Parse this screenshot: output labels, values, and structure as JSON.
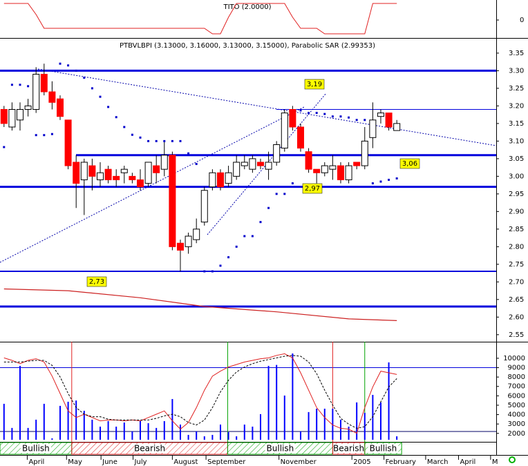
{
  "chart_data": [
    {
      "type": "line",
      "title": "TITO (2.0000)",
      "ylim": [
        -0.65,
        0.675
      ],
      "yticks": [
        0
      ],
      "series": [
        {
          "color": "#e02020",
          "values": [
            0.6,
            0.6,
            0.6,
            0.6,
            0.2,
            -0.3,
            -0.3,
            -0.3,
            -0.3,
            -0.3,
            -0.3,
            -0.3,
            -0.3,
            -0.3,
            -0.3,
            -0.3,
            -0.3,
            -0.3,
            -0.3,
            -0.3,
            -0.3,
            -0.3,
            -0.3,
            -0.3,
            -0.3,
            -0.3,
            -0.5,
            -0.5,
            0.1,
            0.6,
            0.6,
            0.6,
            0.6,
            0.6,
            0.6,
            0.6,
            0.1,
            -0.3,
            -0.3,
            -0.3,
            -0.5,
            -0.5,
            -0.5,
            -0.5,
            -0.5,
            -0.5,
            0.6,
            0.6,
            0.6,
            0.6
          ]
        }
      ]
    },
    {
      "type": "candlestick",
      "title": "PTBVLBPI (3.13000, 3.16000, 3.13000, 3.15000), Parabolic SAR (2.99353)",
      "up_color": "#ffffff",
      "down_color": "#ff0000",
      "open": [
        3.19,
        3.14,
        3.16,
        3.19,
        3.19,
        3.29,
        3.24,
        3.22,
        3.16,
        3.04,
        2.99,
        3.03,
        2.99,
        3.02,
        3.0,
        3.01,
        3.0,
        2.99,
        2.98,
        3.03,
        3.02,
        3.06,
        2.81,
        2.8,
        2.82,
        2.87,
        2.97,
        3.01,
        2.98,
        3.0,
        3.03,
        3.02,
        3.04,
        3.02,
        3.04,
        3.08,
        3.19,
        3.14,
        3.07,
        3.02,
        3.01,
        3.02,
        3.03,
        2.99,
        3.04,
        3.03,
        3.11,
        3.17,
        3.18,
        3.13
      ],
      "high": [
        3.2,
        3.21,
        3.21,
        3.22,
        3.31,
        3.32,
        3.27,
        3.23,
        3.16,
        3.06,
        3.05,
        3.05,
        3.04,
        3.03,
        3.02,
        3.03,
        3.01,
        3.02,
        3.04,
        3.06,
        3.1,
        3.07,
        2.82,
        2.84,
        2.88,
        2.97,
        3.02,
        3.02,
        3.03,
        3.06,
        3.06,
        3.06,
        3.05,
        3.07,
        3.1,
        3.19,
        3.2,
        3.15,
        3.08,
        3.02,
        3.04,
        3.06,
        3.04,
        3.04,
        3.04,
        3.14,
        3.21,
        3.19,
        3.18,
        3.16
      ],
      "low": [
        3.14,
        3.13,
        3.13,
        3.17,
        3.18,
        3.23,
        3.19,
        3.16,
        3.02,
        2.91,
        2.89,
        2.96,
        2.97,
        2.98,
        2.97,
        2.98,
        2.98,
        2.96,
        2.97,
        2.98,
        3.0,
        2.79,
        2.73,
        2.78,
        2.81,
        2.86,
        2.96,
        2.96,
        2.97,
        2.99,
        3.02,
        3.01,
        3.02,
        2.99,
        3.03,
        3.07,
        3.13,
        3.07,
        3.01,
        2.98,
        3.0,
        2.99,
        2.98,
        2.98,
        3.02,
        3.02,
        3.08,
        3.15,
        3.13,
        3.13
      ],
      "close": [
        3.15,
        3.19,
        3.19,
        3.2,
        3.29,
        3.24,
        3.21,
        3.17,
        3.03,
        2.98,
        3.04,
        3.0,
        3.01,
        2.99,
        2.99,
        3.02,
        2.99,
        2.97,
        3.04,
        3.01,
        3.06,
        2.8,
        2.79,
        2.83,
        2.85,
        2.96,
        3.01,
        2.97,
        3.01,
        3.04,
        3.04,
        3.05,
        3.03,
        3.04,
        3.09,
        3.18,
        3.14,
        3.08,
        3.02,
        3.01,
        3.03,
        3.03,
        2.99,
        3.03,
        3.03,
        3.1,
        3.16,
        3.18,
        3.14,
        3.15
      ],
      "sar": {
        "color": "#0000cc",
        "values": [
          3.083,
          3.26,
          3.26,
          3.256,
          3.117,
          3.117,
          3.12,
          3.32,
          3.315,
          3.3,
          3.28,
          3.25,
          3.226,
          3.197,
          3.168,
          3.14,
          3.118,
          3.11,
          3.1,
          3.1,
          3.1,
          3.1,
          3.1,
          3.065,
          3.035,
          2.73,
          2.73,
          2.746,
          2.77,
          2.8,
          2.83,
          2.83,
          2.87,
          2.91,
          2.95,
          2.95,
          2.98,
          3.187,
          3.18,
          3.18,
          3.177,
          3.17,
          3.17,
          3.167,
          3.16,
          3.16,
          2.98,
          2.985,
          2.99,
          2.994
        ]
      },
      "ma": {
        "color": "#cc2020",
        "x": [
          0,
          8,
          17,
          25,
          34,
          43,
          49
        ],
        "values": [
          2.68,
          2.675,
          2.655,
          2.63,
          2.615,
          2.595,
          2.59
        ]
      },
      "hlines": [
        {
          "value": 3.3
        },
        {
          "value": 3.19,
          "label": "3,19"
        },
        {
          "value": 3.06,
          "label": "3,06"
        },
        {
          "value": 2.97,
          "label": "2,97"
        },
        {
          "value": 2.73,
          "label": "2,73"
        },
        {
          "value": 2.63
        }
      ],
      "ylim": [
        2.53,
        3.393
      ],
      "yticks": [
        3.35,
        {
          "value": 3.3,
          "label": "3.30"
        },
        3.25,
        {
          "value": 3.2,
          "label": "3.20"
        },
        3.15,
        {
          "value": 3.1,
          "label": "3.10"
        },
        3.05,
        {
          "value": 3.0,
          "label": "3.00"
        },
        2.95,
        {
          "value": 2.9,
          "label": "2.90"
        },
        2.85,
        {
          "value": 2.8,
          "label": "2.80"
        },
        2.75,
        {
          "value": 2.7,
          "label": "2.70"
        },
        2.65,
        {
          "value": 2.6,
          "label": "2.60"
        },
        2.55
      ]
    },
    {
      "type": "bar",
      "color": "#0000ff",
      "values": [
        5150,
        2580,
        9190,
        2580,
        3460,
        5150,
        1470,
        4930,
        5370,
        5500,
        4410,
        3460,
        2720,
        3310,
        2720,
        3160,
        2210,
        3310,
        3090,
        2580,
        3310,
        5660,
        2940,
        1840,
        2210,
        1690,
        1840,
        2940,
        2140,
        1690,
        2940,
        2720,
        4050,
        9190,
        9290,
        6030,
        10510,
        2210,
        4270,
        4630,
        4630,
        4630,
        3460,
        2720,
        5300,
        4190,
        6100,
        5300,
        9560,
        1690
      ],
      "ylim": [
        1100,
        11760
      ],
      "yticks": [
        10000,
        9000,
        8000,
        7000,
        6000,
        5000,
        4000,
        3000,
        2000
      ],
      "hlines": [
        9000,
        2200
      ],
      "y2lim": [
        0,
        100
      ],
      "series": [
        {
          "color": "#e02020",
          "axis": "y2",
          "values": [
            93,
            90,
            86,
            90,
            92,
            88,
            71,
            50,
            29,
            21,
            25,
            21,
            17,
            18,
            18,
            17,
            18,
            17,
            21,
            25,
            29,
            17,
            7,
            15,
            33,
            54,
            71,
            77,
            82,
            85,
            88,
            90,
            92,
            93,
            96,
            98,
            93,
            75,
            54,
            33,
            21,
            12,
            8,
            7,
            2,
            33,
            58,
            77,
            75,
            73
          ]
        },
        {
          "color": "#000000",
          "axis": "y2",
          "values": [
            88,
            88,
            88,
            89,
            90,
            90,
            84,
            70,
            50,
            33,
            25,
            22,
            22,
            19,
            18,
            18,
            18,
            18,
            18,
            20,
            23,
            25,
            22,
            15,
            12,
            18,
            33,
            52,
            66,
            76,
            82,
            86,
            89,
            91,
            93,
            95,
            96,
            95,
            88,
            74,
            54,
            36,
            20,
            13,
            8,
            10,
            22,
            40,
            58,
            68
          ]
        }
      ],
      "signals": [
        {
          "label": "Bullish",
          "color": "#00a000",
          "from": -0.5,
          "to": 8.45
        },
        {
          "label": "Bearish",
          "color": "#e02020",
          "from": 8.45,
          "to": 27.9
        },
        {
          "label": "Bullish",
          "color": "#00a000",
          "from": 27.9,
          "to": 41.0
        },
        {
          "label": "Bearish",
          "color": "#e02020",
          "from": 41.0,
          "to": 45.0
        },
        {
          "label": "Bullish",
          "color": "#00a000",
          "from": 45.0,
          "to": 49.6
        }
      ],
      "xlim": [
        -0.5,
        61.4
      ],
      "xticks": [
        {
          "value": 2.9,
          "label": "April"
        },
        {
          "value": 7.8,
          "label": "May"
        },
        {
          "value": 12.1,
          "label": "June"
        },
        {
          "value": 16.1,
          "label": "July"
        },
        {
          "value": 21.0,
          "label": "August"
        },
        {
          "value": 25.2,
          "label": "September"
        },
        {
          "value": 34.3,
          "label": "November"
        },
        {
          "value": 43.4,
          "label": "2005"
        },
        {
          "value": 47.4,
          "label": "February"
        },
        {
          "value": 52.6,
          "label": "March"
        },
        {
          "value": 56.7,
          "label": "April"
        },
        {
          "value": 60.7,
          "label": "M"
        }
      ]
    }
  ]
}
